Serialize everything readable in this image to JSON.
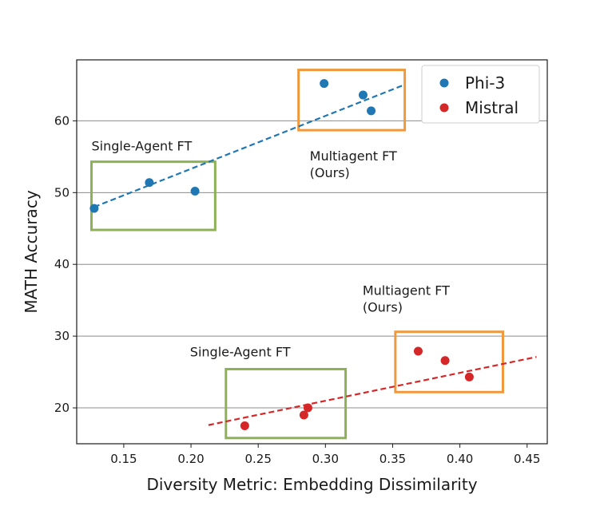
{
  "chart_data": {
    "type": "scatter",
    "xlabel": "Diversity Metric: Embedding Dissimilarity",
    "ylabel": "MATH Accuracy",
    "xlim": [
      0.115,
      0.465
    ],
    "ylim": [
      15.0,
      68.5
    ],
    "xticks": [
      0.15,
      0.2,
      0.25,
      0.3,
      0.35,
      0.4,
      0.45
    ],
    "xtick_labels": [
      "0.15",
      "0.20",
      "0.25",
      "0.30",
      "0.35",
      "0.40",
      "0.45"
    ],
    "yticks": [
      20,
      30,
      40,
      50,
      60
    ],
    "ytick_labels": [
      "20",
      "30",
      "40",
      "50",
      "60"
    ],
    "grid": "horizontal",
    "legend_position": "top-right",
    "series": [
      {
        "name": "Phi-3",
        "color": "#1f77b4",
        "points": [
          {
            "x": 0.128,
            "y": 47.8
          },
          {
            "x": 0.169,
            "y": 51.4
          },
          {
            "x": 0.203,
            "y": 50.2
          },
          {
            "x": 0.299,
            "y": 65.2
          },
          {
            "x": 0.328,
            "y": 63.6
          },
          {
            "x": 0.334,
            "y": 61.4
          }
        ],
        "trend": {
          "x0": 0.128,
          "y0": 48.0,
          "x1": 0.357,
          "y1": 64.9
        }
      },
      {
        "name": "Mistral",
        "color": "#d62728",
        "points": [
          {
            "x": 0.24,
            "y": 17.5
          },
          {
            "x": 0.284,
            "y": 19.0
          },
          {
            "x": 0.287,
            "y": 20.0
          },
          {
            "x": 0.369,
            "y": 27.9
          },
          {
            "x": 0.389,
            "y": 26.6
          },
          {
            "x": 0.407,
            "y": 24.3
          }
        ],
        "trend": {
          "x0": 0.213,
          "y0": 17.6,
          "x1": 0.457,
          "y1": 27.1
        }
      }
    ],
    "groups": [
      {
        "label": "Single-Agent FT",
        "color": "#8db255",
        "x0": 0.126,
        "x1": 0.218,
        "y0": 44.8,
        "y1": 54.3
      },
      {
        "label": "Multiagent FT\n(Ours)",
        "color": "#f0983c",
        "x0": 0.28,
        "x1": 0.359,
        "y0": 58.7,
        "y1": 67.1
      },
      {
        "label": "Single-Agent FT",
        "color": "#8db255",
        "x0": 0.226,
        "x1": 0.315,
        "y0": 15.8,
        "y1": 25.4
      },
      {
        "label": "Multiagent FT\n(Ours)",
        "color": "#f0983c",
        "x0": 0.352,
        "x1": 0.432,
        "y0": 22.2,
        "y1": 30.6
      }
    ]
  }
}
